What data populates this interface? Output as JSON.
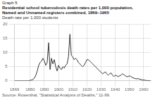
{
  "chart_data": {
    "type": "line",
    "annotations": [
      "Graph 5"
    ],
    "title": [
      "Residential school tuberculosis death rates per 1,000 population,",
      "Named and Unnamed registers combined, 1869–1965"
    ],
    "y_label": "Death rate per 1,000 students",
    "source": "Source: Rosenthal, \"Statistical Analysis of Deaths,\" 11-99.",
    "x": [
      1869,
      1870,
      1871,
      1872,
      1873,
      1874,
      1875,
      1876,
      1877,
      1878,
      1879,
      1880,
      1881,
      1882,
      1883,
      1884,
      1885,
      1886,
      1887,
      1888,
      1889,
      1890,
      1891,
      1892,
      1893,
      1894,
      1895,
      1896,
      1897,
      1898,
      1899,
      1900,
      1901,
      1902,
      1903,
      1904,
      1905,
      1906,
      1907,
      1908,
      1909,
      1910,
      1911,
      1912,
      1913,
      1914,
      1915,
      1916,
      1917,
      1918,
      1919,
      1920,
      1921,
      1922,
      1923,
      1924,
      1925,
      1926,
      1927,
      1928,
      1929,
      1930,
      1931,
      1932,
      1933,
      1934,
      1935,
      1936,
      1937,
      1938,
      1939,
      1940,
      1941,
      1942,
      1943,
      1944,
      1945,
      1946,
      1947,
      1948,
      1949,
      1950,
      1951,
      1952,
      1953,
      1954,
      1955,
      1956,
      1957,
      1958,
      1959,
      1960,
      1961,
      1962,
      1963,
      1964,
      1965
    ],
    "values": [
      0.0,
      0.0,
      0.0,
      0.0,
      0.0,
      0.0,
      0.0,
      0.0,
      0.0,
      0.0,
      0.0,
      0.2,
      0.3,
      0.5,
      1.0,
      2.0,
      3.5,
      5.5,
      6.5,
      7.0,
      8.0,
      7.0,
      5.5,
      6.5,
      13.5,
      4.0,
      8.0,
      6.0,
      7.5,
      5.0,
      3.5,
      5.5,
      4.5,
      4.0,
      5.0,
      4.5,
      5.5,
      6.0,
      8.5,
      16.5,
      9.0,
      8.5,
      7.5,
      8.0,
      7.5,
      6.5,
      6.0,
      5.5,
      5.0,
      5.5,
      6.5,
      7.5,
      7.5,
      7.0,
      6.5,
      6.0,
      5.5,
      5.0,
      4.5,
      4.0,
      3.5,
      3.0,
      2.5,
      2.8,
      3.2,
      2.5,
      2.0,
      2.5,
      2.8,
      2.0,
      1.5,
      2.0,
      1.8,
      1.5,
      1.8,
      2.0,
      2.5,
      2.2,
      1.8,
      1.5,
      1.5,
      1.8,
      1.5,
      1.2,
      1.0,
      0.8,
      0.7,
      0.8,
      0.6,
      0.5,
      0.3,
      0.3,
      0.2,
      0.1,
      0.1,
      0.05,
      0.0
    ],
    "color": "#333333",
    "xlim": [
      1869,
      1965
    ],
    "xticks": [
      1869,
      1880,
      1890,
      1900,
      1910,
      1920,
      1930,
      1940,
      1950,
      1960
    ],
    "ylim": [
      0,
      20
    ],
    "yticks": [
      0,
      5,
      10,
      15,
      20
    ],
    "grid": true
  }
}
